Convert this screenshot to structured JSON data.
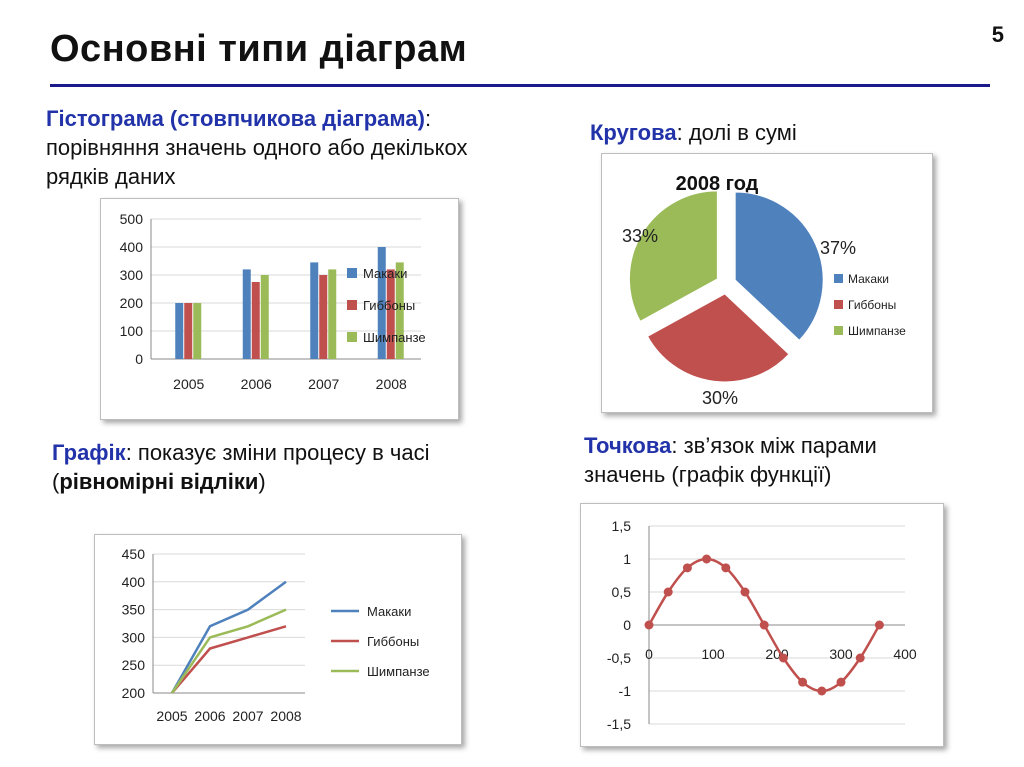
{
  "slide": {
    "title": "Основні  типи  діаграм",
    "page_number": "5"
  },
  "captions": {
    "bar": {
      "term": "Гістограма (стовпчикова діаграма)",
      "colon": ":",
      "line1": "порівняння значень одного або декількох",
      "line2": "рядків даних"
    },
    "pie": {
      "term": "Кругова",
      "rest": ": долі в сумі"
    },
    "line": {
      "term": "Графік",
      "rest": ": показує зміни процесу в часі",
      "open": "(",
      "bold": "рівномірні відліки",
      "close": ")"
    },
    "scatter": {
      "term": "Точкова",
      "rest1": ": зв’язок між парами",
      "line2": "значень (графік функції)"
    }
  },
  "colors": {
    "blue": "#4f81bd",
    "red": "#c0504d",
    "green": "#9bbb59",
    "accent": "#2233aa",
    "rule": "#1a1a8c",
    "scatter": "#c0504d"
  },
  "chart_data": [
    {
      "type": "bar",
      "categories": [
        "2005",
        "2006",
        "2007",
        "2008"
      ],
      "series": [
        {
          "name": "Макаки",
          "values": [
            200,
            320,
            345,
            400
          ]
        },
        {
          "name": "Гиббоны",
          "values": [
            200,
            275,
            300,
            320
          ]
        },
        {
          "name": "Шимпанзе",
          "values": [
            200,
            300,
            320,
            345
          ]
        }
      ],
      "ylim": [
        0,
        500
      ],
      "yticks": [
        "0",
        "100",
        "200",
        "300",
        "400",
        "500"
      ],
      "grid": true,
      "legend": "right"
    },
    {
      "type": "pie",
      "title": "2008 год",
      "slices": [
        {
          "name": "Макаки",
          "value": 37,
          "label": "37%"
        },
        {
          "name": "Гиббоны",
          "value": 30,
          "label": "30%"
        },
        {
          "name": "Шимпанзе",
          "value": 33,
          "label": "33%"
        }
      ],
      "exploded": true,
      "legend": "right"
    },
    {
      "type": "line",
      "categories": [
        "2005",
        "2006",
        "2007",
        "2008"
      ],
      "series": [
        {
          "name": "Макаки",
          "values": [
            200,
            320,
            350,
            400
          ]
        },
        {
          "name": "Гиббоны",
          "values": [
            200,
            280,
            300,
            320
          ]
        },
        {
          "name": "Шимпанзе",
          "values": [
            200,
            300,
            320,
            350
          ]
        }
      ],
      "ylim": [
        200,
        450
      ],
      "yticks": [
        "200",
        "250",
        "300",
        "350",
        "400",
        "450"
      ],
      "grid": true,
      "legend": "right"
    },
    {
      "type": "scatter",
      "points": [
        [
          0,
          0
        ],
        [
          30,
          0.5
        ],
        [
          60,
          0.866
        ],
        [
          90,
          1
        ],
        [
          120,
          0.866
        ],
        [
          150,
          0.5
        ],
        [
          180,
          0
        ],
        [
          210,
          -0.5
        ],
        [
          240,
          -0.866
        ],
        [
          270,
          -1
        ],
        [
          300,
          -0.866
        ],
        [
          330,
          -0.5
        ],
        [
          360,
          0
        ]
      ],
      "xlim": [
        0,
        400
      ],
      "ylim": [
        -1.5,
        1.5
      ],
      "xticks": [
        "0",
        "100",
        "200",
        "300",
        "400"
      ],
      "yticks": [
        "-1,5",
        "-1",
        "-0,5",
        "0",
        "0,5",
        "1",
        "1,5"
      ],
      "grid": true,
      "smooth": true,
      "markers": true
    }
  ]
}
